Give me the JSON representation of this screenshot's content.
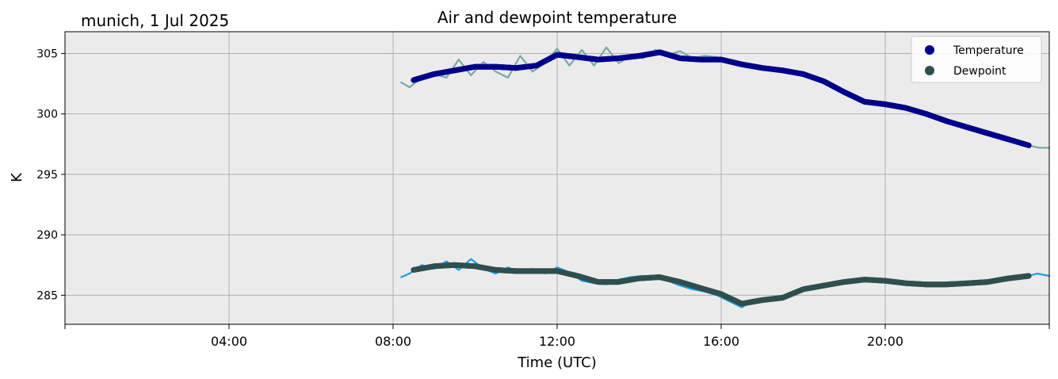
{
  "chart_data": {
    "type": "line",
    "title": "Air and dewpoint temperature",
    "subtitle": "munich, 1 Jul 2025",
    "xlabel": "Time (UTC)",
    "ylabel": "K",
    "xlim": [
      0,
      24
    ],
    "ylim": [
      282.6,
      306.8
    ],
    "x_ticks": [
      {
        "value": 4,
        "label": "04:00"
      },
      {
        "value": 8,
        "label": "08:00"
      },
      {
        "value": 12,
        "label": "12:00"
      },
      {
        "value": 16,
        "label": "16:00"
      },
      {
        "value": 20,
        "label": "20:00"
      }
    ],
    "x_minor_ticks": [
      0,
      24
    ],
    "y_ticks": [
      285,
      290,
      295,
      300,
      305
    ],
    "grid": true,
    "legend_position": "top-right",
    "legend": [
      {
        "label": "Temperature",
        "color": "#00008b"
      },
      {
        "label": "Dewpoint",
        "color": "#2f4f4f"
      }
    ],
    "series": [
      {
        "name": "Temperature",
        "role": "smoothed",
        "color": "#00008b",
        "x": [
          8.5,
          9.0,
          9.5,
          10.0,
          10.5,
          11.0,
          11.5,
          12.0,
          12.5,
          13.0,
          13.5,
          14.0,
          14.5,
          15.0,
          15.5,
          16.0,
          16.5,
          17.0,
          17.5,
          18.0,
          18.5,
          19.0,
          19.5,
          20.0,
          20.5,
          21.0,
          21.5,
          22.0,
          22.5,
          23.0,
          23.5
        ],
        "y": [
          302.8,
          303.3,
          303.6,
          303.9,
          303.9,
          303.8,
          304.0,
          304.9,
          304.7,
          304.5,
          304.6,
          304.8,
          305.1,
          304.6,
          304.5,
          304.5,
          304.1,
          303.8,
          303.6,
          303.3,
          302.7,
          301.8,
          301.0,
          300.8,
          300.5,
          300.0,
          299.4,
          298.9,
          298.4,
          297.9,
          297.4
        ]
      },
      {
        "name": "",
        "role": "raw temperature",
        "color": "#7aa8a8",
        "x": [
          8.2,
          8.4,
          8.7,
          9.0,
          9.3,
          9.6,
          9.9,
          10.2,
          10.5,
          10.8,
          11.1,
          11.4,
          11.7,
          12.0,
          12.3,
          12.6,
          12.9,
          13.2,
          13.5,
          13.8,
          14.1,
          14.4,
          14.7,
          15.0,
          15.3,
          15.6,
          15.9,
          16.2,
          16.5
        ],
        "y": [
          302.6,
          302.2,
          303.0,
          303.3,
          303.0,
          304.5,
          303.2,
          304.3,
          303.5,
          303.0,
          304.8,
          303.5,
          304.2,
          305.4,
          304.0,
          305.3,
          304.0,
          305.5,
          304.2,
          304.8,
          304.6,
          305.3,
          304.9,
          305.2,
          304.6,
          304.8,
          304.7,
          304.2,
          304.0
        ]
      },
      {
        "name": "",
        "role": "raw temperature tail",
        "color": "#7aa8a8",
        "x": [
          23.5,
          23.75,
          24.0
        ],
        "y": [
          297.4,
          297.2,
          297.2
        ]
      },
      {
        "name": "Dewpoint",
        "role": "smoothed",
        "color": "#2f4f4f",
        "x": [
          8.5,
          9.0,
          9.5,
          10.0,
          10.5,
          11.0,
          11.5,
          12.0,
          12.5,
          13.0,
          13.5,
          14.0,
          14.5,
          15.0,
          15.5,
          16.0,
          16.5,
          17.0,
          17.5,
          18.0,
          18.5,
          19.0,
          19.5,
          20.0,
          20.5,
          21.0,
          21.5,
          22.0,
          22.5,
          23.0,
          23.5
        ],
        "y": [
          287.1,
          287.4,
          287.5,
          287.4,
          287.1,
          287.0,
          287.0,
          287.0,
          286.6,
          286.1,
          286.1,
          286.4,
          286.5,
          286.1,
          285.6,
          285.1,
          284.3,
          284.6,
          284.8,
          285.5,
          285.8,
          286.1,
          286.3,
          286.2,
          286.0,
          285.9,
          285.9,
          286.0,
          286.1,
          286.4,
          286.6
        ]
      },
      {
        "name": "",
        "role": "raw dewpoint",
        "color": "#1e9be0",
        "x": [
          8.2,
          8.4,
          8.7,
          9.0,
          9.3,
          9.6,
          9.9,
          10.2,
          10.5,
          10.8,
          11.1,
          11.4,
          11.7,
          12.0,
          12.3,
          12.6,
          12.9,
          13.2,
          13.5,
          13.8,
          14.1,
          14.4,
          14.7,
          15.0,
          15.3,
          15.6,
          15.9,
          16.2,
          16.5,
          16.8,
          17.1,
          17.4,
          17.7,
          18.0,
          18.3,
          18.6,
          18.9,
          19.2,
          19.5,
          19.8,
          20.1,
          20.4,
          20.7,
          21.0,
          21.3,
          21.6,
          21.9,
          22.2,
          22.5,
          22.8,
          23.1,
          23.4,
          23.7,
          24.0
        ],
        "y": [
          286.5,
          286.8,
          287.5,
          287.2,
          287.8,
          287.1,
          288.0,
          287.2,
          286.8,
          287.3,
          286.9,
          287.2,
          286.8,
          287.3,
          286.9,
          286.2,
          286.0,
          285.9,
          286.3,
          286.5,
          286.6,
          286.4,
          286.2,
          285.8,
          285.5,
          285.3,
          285.0,
          284.5,
          284.0,
          284.6,
          284.8,
          284.6,
          285.0,
          285.4,
          285.7,
          285.9,
          286.1,
          286.3,
          286.2,
          286.4,
          286.2,
          286.1,
          286.0,
          285.9,
          286.0,
          286.1,
          286.0,
          285.9,
          286.1,
          286.3,
          286.4,
          286.5,
          286.8,
          286.6
        ]
      }
    ]
  }
}
